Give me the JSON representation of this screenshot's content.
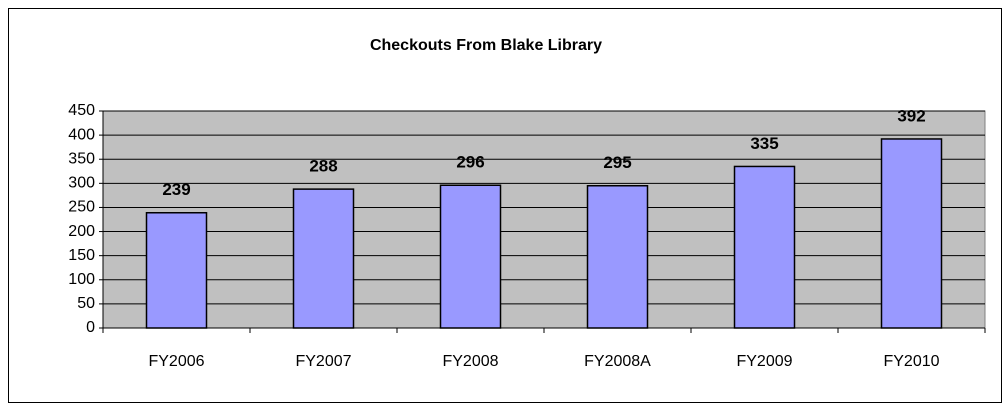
{
  "chart_data": {
    "type": "bar",
    "title": "Checkouts From Blake Library",
    "categories": [
      "FY2006",
      "FY2007",
      "FY2008",
      "FY2008A",
      "FY2009",
      "FY2010"
    ],
    "values": [
      239,
      288,
      296,
      295,
      335,
      392
    ],
    "color": "#9999ff",
    "ylim": [
      0,
      450
    ],
    "yticks": [
      0,
      50,
      100,
      150,
      200,
      250,
      300,
      350,
      400,
      450
    ],
    "grid": true
  }
}
